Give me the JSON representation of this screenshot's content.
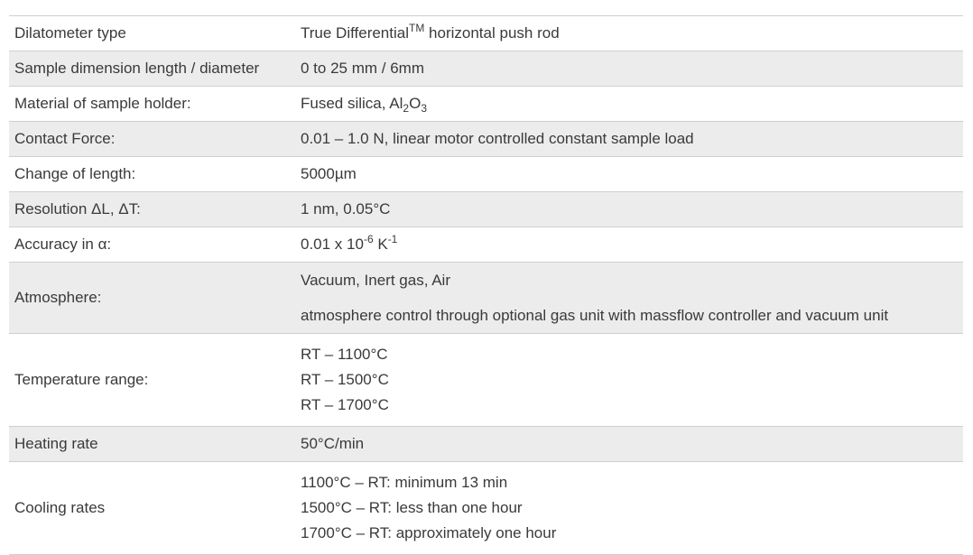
{
  "rows": [
    {
      "label": "Dilatometer type",
      "value": {
        "pre": "True Differential",
        "sup": "TM",
        "post": " horizontal push rod"
      }
    },
    {
      "label": "Sample dimension length / diameter",
      "value": "0 to 25 mm / 6mm"
    },
    {
      "label": "Material of sample holder:",
      "value": {
        "pre": "Fused silica, Al",
        "sub1": "2",
        "mid": "O",
        "sub2": "3"
      }
    },
    {
      "label": "Contact Force:",
      "value": "0.01 – 1.0 N, linear motor controlled constant sample load"
    },
    {
      "label": "Change of length:",
      "value": "5000µm"
    },
    {
      "label": "Resolution ΔL, ΔT:",
      "value": "1 nm, 0.05°C"
    },
    {
      "label": "Accuracy in  α:",
      "value": {
        "pre": "0.01 x 10",
        "sup1": "-6",
        "mid": " K",
        "sup2": "-1"
      }
    },
    {
      "label": "Atmosphere:",
      "lines": [
        "Vacuum, Inert gas, Air",
        "atmosphere control through optional gas unit with massflow controller and vacuum unit"
      ]
    },
    {
      "label": "Temperature range:",
      "lines": [
        "RT – 1100°C",
        "RT – 1500°C",
        "RT – 1700°C"
      ]
    },
    {
      "label": "Heating rate",
      "value": "50°C/min"
    },
    {
      "label": "Cooling rates",
      "lines": [
        "1100°C – RT: minimum 13 min",
        "1500°C – RT: less than one hour",
        "1700°C – RT: approximately one hour"
      ]
    }
  ]
}
